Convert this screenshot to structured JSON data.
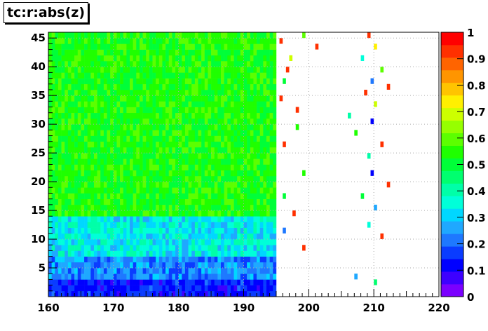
{
  "chart_data": {
    "type": "heatmap",
    "title": "tc:r:abs(z)",
    "xlim": [
      160,
      220
    ],
    "ylim": [
      0,
      46
    ],
    "x_ticks": [
      160,
      170,
      180,
      190,
      200,
      210,
      220
    ],
    "y_ticks": [
      5,
      10,
      15,
      20,
      25,
      30,
      35,
      40,
      45
    ],
    "z_range": [
      0,
      1
    ],
    "z_ticks": [
      0,
      0.1,
      0.2,
      0.3,
      0.4,
      0.5,
      0.6,
      0.7,
      0.8,
      0.9,
      1
    ],
    "grid": true,
    "palette": [
      "#7b00ff",
      "#3d00ff",
      "#0000ff",
      "#0a3cff",
      "#1e78ff",
      "#1fa8ff",
      "#00d7ff",
      "#00ffd9",
      "#00ffa8",
      "#00ff6f",
      "#00ff38",
      "#1fff00",
      "#5cff00",
      "#96ff00",
      "#cdff00",
      "#fff000",
      "#ffc400",
      "#ff9500",
      "#ff6400",
      "#ff3000",
      "#ff0000"
    ],
    "regions": [
      {
        "x": [
          160,
          195
        ],
        "y": [
          0,
          3
        ],
        "z_mean": 0.12,
        "z_spread": 0.06
      },
      {
        "x": [
          160,
          195
        ],
        "y": [
          3,
          7
        ],
        "z_mean": 0.22,
        "z_spread": 0.08
      },
      {
        "x": [
          160,
          195
        ],
        "y": [
          7,
          14
        ],
        "z_mean": 0.33,
        "z_spread": 0.08
      },
      {
        "x": [
          160,
          195
        ],
        "y": [
          14,
          46
        ],
        "z_mean": 0.54,
        "z_spread": 0.06
      }
    ],
    "sparse_cells": [
      {
        "x": 195.5,
        "y": 44,
        "z": 0.95
      },
      {
        "x": 196.5,
        "y": 39,
        "z": 0.95
      },
      {
        "x": 197,
        "y": 41,
        "z": 0.7
      },
      {
        "x": 199,
        "y": 45,
        "z": 0.6
      },
      {
        "x": 201,
        "y": 43,
        "z": 0.95
      },
      {
        "x": 196,
        "y": 37,
        "z": 0.5
      },
      {
        "x": 198,
        "y": 32,
        "z": 0.95
      },
      {
        "x": 196,
        "y": 26,
        "z": 0.95
      },
      {
        "x": 199,
        "y": 21,
        "z": 0.55
      },
      {
        "x": 196,
        "y": 17,
        "z": 0.5
      },
      {
        "x": 197.5,
        "y": 14,
        "z": 0.95
      },
      {
        "x": 199,
        "y": 8,
        "z": 0.95
      },
      {
        "x": 196,
        "y": 11,
        "z": 0.2
      },
      {
        "x": 198,
        "y": 29,
        "z": 0.55
      },
      {
        "x": 195.5,
        "y": 34,
        "z": 0.95
      },
      {
        "x": 209,
        "y": 45,
        "z": 0.95
      },
      {
        "x": 210,
        "y": 43,
        "z": 0.75
      },
      {
        "x": 208,
        "y": 41,
        "z": 0.35
      },
      {
        "x": 211,
        "y": 39,
        "z": 0.6
      },
      {
        "x": 209.5,
        "y": 37,
        "z": 0.2
      },
      {
        "x": 208.5,
        "y": 35,
        "z": 0.95
      },
      {
        "x": 210,
        "y": 33,
        "z": 0.7
      },
      {
        "x": 209.5,
        "y": 30,
        "z": 0.1
      },
      {
        "x": 207,
        "y": 28,
        "z": 0.55
      },
      {
        "x": 211,
        "y": 26,
        "z": 0.95
      },
      {
        "x": 209,
        "y": 24,
        "z": 0.4
      },
      {
        "x": 209.5,
        "y": 21,
        "z": 0.1
      },
      {
        "x": 212,
        "y": 19,
        "z": 0.95
      },
      {
        "x": 208,
        "y": 17,
        "z": 0.5
      },
      {
        "x": 210,
        "y": 15,
        "z": 0.25
      },
      {
        "x": 209,
        "y": 12,
        "z": 0.35
      },
      {
        "x": 211,
        "y": 10,
        "z": 0.95
      },
      {
        "x": 207,
        "y": 3,
        "z": 0.25
      },
      {
        "x": 210,
        "y": 2,
        "z": 0.45
      },
      {
        "x": 206,
        "y": 31,
        "z": 0.4
      },
      {
        "x": 212,
        "y": 36,
        "z": 0.95
      }
    ]
  }
}
